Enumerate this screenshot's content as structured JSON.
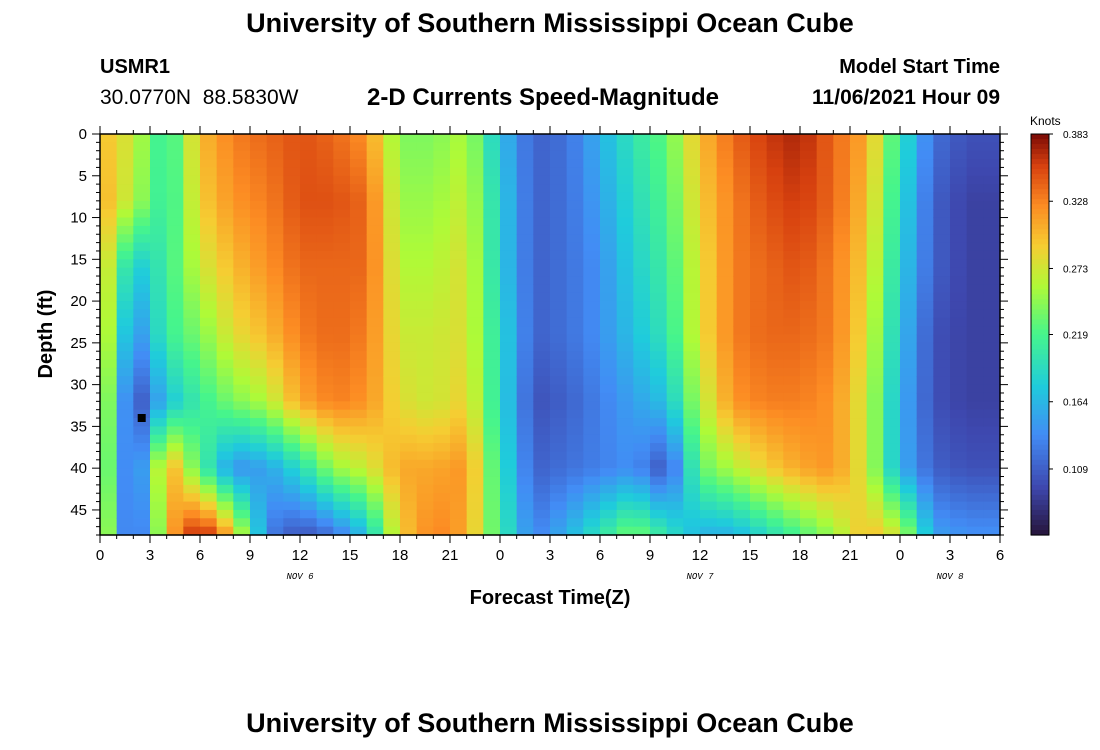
{
  "title": "University of Southern Mississippi Ocean Cube",
  "footer_title": "University of Southern Mississippi Ocean Cube",
  "station": {
    "id": "USMR1",
    "coords": "30.0770N  88.5830W"
  },
  "subtitle": "2-D Currents Speed-Magnitude",
  "model_start": {
    "label": "Model Start Time",
    "value": "11/06/2021 Hour 09"
  },
  "chart_data": {
    "type": "heatmap",
    "title": "2-D Currents Speed-Magnitude",
    "xlabel": "Forecast Time(Z)",
    "ylabel": "Depth (ft)",
    "x_unit": "hours since 11/06/2021 00Z",
    "xlim": [
      0,
      54
    ],
    "ylim": [
      0,
      48
    ],
    "y_inverted": true,
    "x_ticks": [
      {
        "h": 0,
        "label": "0"
      },
      {
        "h": 3,
        "label": "3"
      },
      {
        "h": 6,
        "label": "6"
      },
      {
        "h": 9,
        "label": "9"
      },
      {
        "h": 12,
        "label": "12"
      },
      {
        "h": 15,
        "label": "15"
      },
      {
        "h": 18,
        "label": "18"
      },
      {
        "h": 21,
        "label": "21"
      },
      {
        "h": 24,
        "label": "0"
      },
      {
        "h": 27,
        "label": "3"
      },
      {
        "h": 30,
        "label": "6"
      },
      {
        "h": 33,
        "label": "9"
      },
      {
        "h": 36,
        "label": "12"
      },
      {
        "h": 39,
        "label": "15"
      },
      {
        "h": 42,
        "label": "18"
      },
      {
        "h": 45,
        "label": "21"
      },
      {
        "h": 48,
        "label": "0"
      },
      {
        "h": 51,
        "label": "3"
      },
      {
        "h": 54,
        "label": "6"
      }
    ],
    "date_labels": [
      {
        "h": 12,
        "label": "NOV 6"
      },
      {
        "h": 36,
        "label": "NOV 7"
      },
      {
        "h": 51,
        "label": "NOV 8"
      }
    ],
    "y_ticks": [
      0,
      5,
      10,
      15,
      20,
      25,
      30,
      35,
      40,
      45
    ],
    "marker": {
      "h": 2.5,
      "depth": 34
    },
    "colorbar": {
      "unit": "Knots",
      "min": 0.055,
      "max": 0.383,
      "tick_values": [
        0.383,
        0.328,
        0.273,
        0.219,
        0.164,
        0.109
      ],
      "tick_labels": [
        "0.383",
        "0.328",
        "0.273",
        "0.219",
        "0.164",
        "0.109"
      ]
    },
    "time_hours": [
      0,
      2,
      4,
      6,
      8,
      10,
      12,
      14,
      16,
      18,
      20,
      22,
      24,
      26,
      28,
      30,
      32,
      34,
      36,
      38,
      40,
      42,
      44,
      46,
      48,
      50,
      52,
      54
    ],
    "depth_ft": [
      0,
      8,
      16,
      24,
      32,
      40,
      48
    ],
    "values": [
      [
        0.3,
        0.27,
        0.2,
        0.3,
        0.33,
        0.34,
        0.35,
        0.34,
        0.32,
        0.24,
        0.24,
        0.26,
        0.17,
        0.11,
        0.12,
        0.16,
        0.2,
        0.23,
        0.3,
        0.34,
        0.36,
        0.37,
        0.34,
        0.31,
        0.2,
        0.12,
        0.1,
        0.1
      ],
      [
        0.31,
        0.26,
        0.2,
        0.29,
        0.32,
        0.33,
        0.35,
        0.35,
        0.34,
        0.25,
        0.25,
        0.27,
        0.18,
        0.11,
        0.12,
        0.15,
        0.19,
        0.22,
        0.29,
        0.33,
        0.35,
        0.36,
        0.34,
        0.3,
        0.19,
        0.11,
        0.09,
        0.09
      ],
      [
        0.3,
        0.17,
        0.21,
        0.27,
        0.3,
        0.32,
        0.34,
        0.34,
        0.34,
        0.26,
        0.26,
        0.28,
        0.18,
        0.11,
        0.12,
        0.14,
        0.18,
        0.21,
        0.28,
        0.33,
        0.34,
        0.35,
        0.33,
        0.29,
        0.18,
        0.11,
        0.09,
        0.09
      ],
      [
        0.3,
        0.13,
        0.21,
        0.24,
        0.28,
        0.3,
        0.33,
        0.34,
        0.33,
        0.27,
        0.27,
        0.28,
        0.19,
        0.11,
        0.12,
        0.14,
        0.17,
        0.2,
        0.28,
        0.33,
        0.34,
        0.34,
        0.33,
        0.28,
        0.17,
        0.1,
        0.09,
        0.09
      ],
      [
        0.29,
        0.09,
        0.17,
        0.21,
        0.24,
        0.26,
        0.31,
        0.33,
        0.32,
        0.28,
        0.27,
        0.29,
        0.19,
        0.1,
        0.11,
        0.13,
        0.15,
        0.17,
        0.26,
        0.32,
        0.33,
        0.33,
        0.32,
        0.27,
        0.16,
        0.1,
        0.09,
        0.09
      ],
      [
        0.28,
        0.09,
        0.32,
        0.22,
        0.14,
        0.15,
        0.19,
        0.25,
        0.27,
        0.31,
        0.31,
        0.32,
        0.2,
        0.11,
        0.12,
        0.13,
        0.14,
        0.1,
        0.23,
        0.26,
        0.29,
        0.31,
        0.32,
        0.27,
        0.16,
        0.11,
        0.1,
        0.1
      ],
      [
        0.3,
        0.08,
        0.3,
        0.38,
        0.3,
        0.13,
        0.1,
        0.12,
        0.17,
        0.29,
        0.33,
        0.31,
        0.21,
        0.13,
        0.16,
        0.2,
        0.24,
        0.2,
        0.16,
        0.16,
        0.19,
        0.22,
        0.25,
        0.3,
        0.27,
        0.15,
        0.14,
        0.14
      ]
    ]
  }
}
